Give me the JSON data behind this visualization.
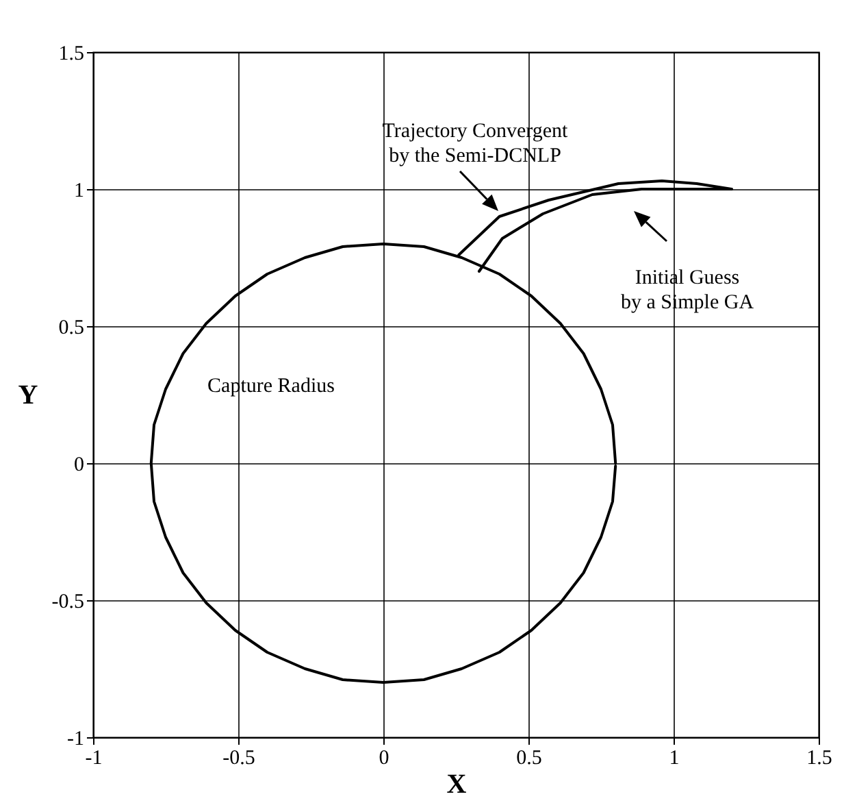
{
  "chart_data": {
    "type": "line",
    "xlabel": "X",
    "ylabel": "Y",
    "xlim": [
      -1,
      1.5
    ],
    "ylim": [
      -1,
      1.5
    ],
    "xticks": [
      -1,
      -0.5,
      0,
      0.5,
      1,
      1.5
    ],
    "yticks": [
      -1,
      -0.5,
      0,
      0.5,
      1,
      1.5
    ],
    "grid": true,
    "legend": false,
    "marker": "none",
    "line_style": "solid",
    "series": [
      {
        "color": "#000000",
        "x": [
          0.8,
          0.79,
          0.75,
          0.69,
          0.61,
          0.51,
          0.4,
          0.27,
          0.14,
          0,
          -0.14,
          -0.27,
          -0.4,
          -0.51,
          -0.61,
          -0.69,
          -0.75,
          -0.79,
          -0.8,
          -0.79,
          -0.75,
          -0.69,
          -0.61,
          -0.51,
          -0.4,
          -0.27,
          -0.14,
          0,
          0.14,
          0.27,
          0.4,
          0.51,
          0.61,
          0.69,
          0.75,
          0.79,
          0.8
        ],
        "values": [
          0,
          0.14,
          0.27,
          0.4,
          0.51,
          0.61,
          0.69,
          0.75,
          0.79,
          0.8,
          0.79,
          0.75,
          0.69,
          0.61,
          0.51,
          0.4,
          0.27,
          0.14,
          0,
          -0.14,
          -0.27,
          -0.4,
          -0.51,
          -0.61,
          -0.69,
          -0.75,
          -0.79,
          -0.8,
          -0.79,
          -0.75,
          -0.69,
          -0.61,
          -0.51,
          -0.4,
          -0.27,
          -0.14,
          -0.01
        ]
      },
      {
        "color": "#000000",
        "x": [
          1.2,
          1.08,
          0.96,
          0.81,
          0.57,
          0.4,
          0.26
        ],
        "values": [
          1.0,
          1.02,
          1.03,
          1.02,
          0.96,
          0.9,
          0.76
        ]
      },
      {
        "color": "#000000",
        "x": [
          1.2,
          1.07,
          0.89,
          0.72,
          0.55,
          0.41,
          0.33
        ],
        "values": [
          1.0,
          1.0,
          1.0,
          0.98,
          0.91,
          0.82,
          0.7
        ]
      }
    ],
    "annotations": [
      "Trajectory Convergent\nby the Semi-DCNLP",
      "Initial Guess\nby a Simple GA",
      "Capture Radius"
    ]
  }
}
